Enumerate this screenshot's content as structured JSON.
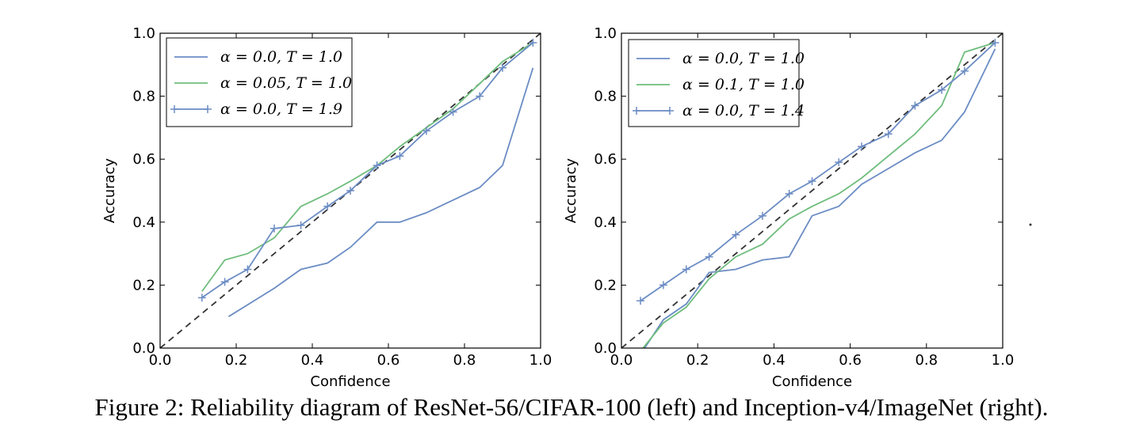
{
  "figure": {
    "caption": "Figure 2: Reliability diagram of ResNet-56/CIFAR-100 (left) and Inception-v4/ImageNet (right)."
  },
  "chart_data": [
    {
      "type": "line",
      "xlabel": "Confidence",
      "ylabel": "Accuracy",
      "xlim": [
        0.0,
        1.0
      ],
      "ylim": [
        0.0,
        1.0
      ],
      "xticks": [
        "0.0",
        "0.2",
        "0.4",
        "0.6",
        "0.8",
        "1.0"
      ],
      "yticks": [
        "0.0",
        "0.2",
        "0.4",
        "0.6",
        "0.8",
        "1.0"
      ],
      "grid": false,
      "legend_position": "top-left",
      "reference_line": {
        "x": [
          0.0,
          1.0
        ],
        "y": [
          0.0,
          1.0
        ],
        "color": "#333333",
        "style": "dashed"
      },
      "series": [
        {
          "name": "α = 0.0, T = 1.0",
          "color": "#6b8cc4",
          "marker": "none",
          "x": [
            0.18,
            0.3,
            0.37,
            0.44,
            0.5,
            0.57,
            0.63,
            0.7,
            0.77,
            0.84,
            0.9,
            0.98
          ],
          "y": [
            0.1,
            0.19,
            0.25,
            0.27,
            0.32,
            0.4,
            0.4,
            0.43,
            0.47,
            0.51,
            0.58,
            0.89
          ]
        },
        {
          "name": "α = 0.05, T = 1.0",
          "color": "#6fbd7c",
          "marker": "none",
          "x": [
            0.11,
            0.17,
            0.23,
            0.3,
            0.37,
            0.44,
            0.5,
            0.57,
            0.63,
            0.7,
            0.77,
            0.84,
            0.9,
            0.98
          ],
          "y": [
            0.18,
            0.28,
            0.3,
            0.35,
            0.45,
            0.49,
            0.53,
            0.58,
            0.64,
            0.7,
            0.76,
            0.84,
            0.91,
            0.97
          ]
        },
        {
          "name": "α = 0.0, T = 1.9",
          "color": "#6b8cc4",
          "marker": "+",
          "x": [
            0.11,
            0.17,
            0.23,
            0.3,
            0.37,
            0.44,
            0.5,
            0.57,
            0.63,
            0.7,
            0.77,
            0.84,
            0.9,
            0.98
          ],
          "y": [
            0.16,
            0.21,
            0.25,
            0.38,
            0.39,
            0.45,
            0.5,
            0.58,
            0.61,
            0.69,
            0.75,
            0.8,
            0.89,
            0.97
          ]
        }
      ]
    },
    {
      "type": "line",
      "xlabel": "Confidence",
      "ylabel": "Accuracy",
      "xlim": [
        0.0,
        1.0
      ],
      "ylim": [
        0.0,
        1.0
      ],
      "xticks": [
        "0.0",
        "0.2",
        "0.4",
        "0.6",
        "0.8",
        "1.0"
      ],
      "yticks": [
        "0.0",
        "0.2",
        "0.4",
        "0.6",
        "0.8",
        "1.0"
      ],
      "grid": false,
      "legend_position": "top-left",
      "reference_line": {
        "x": [
          0.0,
          1.0
        ],
        "y": [
          0.0,
          1.0
        ],
        "color": "#333333",
        "style": "dashed"
      },
      "series": [
        {
          "name": "α = 0.0, T = 1.0",
          "color": "#6b8cc4",
          "marker": "none",
          "x": [
            0.05,
            0.11,
            0.17,
            0.23,
            0.3,
            0.37,
            0.44,
            0.5,
            0.57,
            0.63,
            0.7,
            0.77,
            0.84,
            0.9,
            0.98
          ],
          "y": [
            -0.02,
            0.09,
            0.14,
            0.24,
            0.25,
            0.28,
            0.29,
            0.42,
            0.45,
            0.52,
            0.57,
            0.62,
            0.66,
            0.75,
            0.95
          ]
        },
        {
          "name": "α = 0.1, T = 1.0",
          "color": "#6fbd7c",
          "marker": "none",
          "x": [
            0.05,
            0.11,
            0.17,
            0.23,
            0.3,
            0.37,
            0.44,
            0.5,
            0.57,
            0.63,
            0.7,
            0.77,
            0.84,
            0.9,
            0.98
          ],
          "y": [
            -0.01,
            0.08,
            0.13,
            0.22,
            0.29,
            0.33,
            0.41,
            0.45,
            0.49,
            0.54,
            0.61,
            0.68,
            0.77,
            0.94,
            0.97
          ]
        },
        {
          "name": "α = 0.0, T = 1.4",
          "color": "#6b8cc4",
          "marker": "+",
          "x": [
            0.05,
            0.11,
            0.17,
            0.23,
            0.3,
            0.37,
            0.44,
            0.5,
            0.57,
            0.63,
            0.7,
            0.77,
            0.84,
            0.9,
            0.98
          ],
          "y": [
            0.15,
            0.2,
            0.25,
            0.29,
            0.36,
            0.42,
            0.49,
            0.53,
            0.59,
            0.64,
            0.68,
            0.77,
            0.82,
            0.88,
            0.97
          ]
        }
      ]
    }
  ]
}
